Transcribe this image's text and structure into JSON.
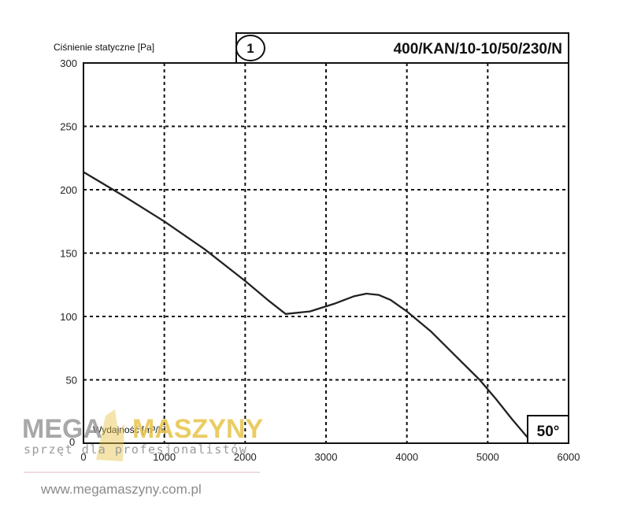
{
  "chart_data": {
    "type": "line",
    "ylabel": "Ciśnienie statyczne [Pa]",
    "xlabel": "Wydajność [m³/h]",
    "xlim": [
      0,
      6000
    ],
    "ylim": [
      0,
      300
    ],
    "x_ticks": [
      0,
      1000,
      2000,
      3000,
      4000,
      5000,
      6000
    ],
    "x_tick_labels": [
      "0",
      "1000",
      "2000",
      "3000",
      "4000",
      "5000",
      "6000"
    ],
    "y_ticks": [
      50,
      100,
      150,
      200,
      250,
      300
    ],
    "y_tick_labels": [
      "50",
      "100",
      "150",
      "200",
      "250",
      "300"
    ],
    "y_zero_label": "0",
    "grid": "dashed",
    "series": [
      {
        "name": "1",
        "x": [
          0,
          500,
          1000,
          1500,
          2000,
          2300,
          2500,
          2800,
          3100,
          3350,
          3500,
          3650,
          3800,
          4000,
          4300,
          4600,
          4900,
          5100,
          5300,
          5500,
          5560
        ],
        "y": [
          214,
          195,
          175,
          153,
          128,
          112,
          102,
          104,
          110,
          116,
          118,
          117,
          113,
          104,
          88,
          69,
          50,
          35,
          19,
          4,
          0
        ]
      }
    ],
    "badge": "1",
    "model": "400/KAN/10-10/50/230/N",
    "annotation": "50°"
  },
  "watermark": {
    "brand_left": "MEGA",
    "brand_right": "MASZYNY",
    "tagline": "sprzęt dla profesjonalistów",
    "url": "www.megamaszyny.com.pl",
    "brand_color": "#9a9a9a",
    "accent_color": "#e8c44a"
  }
}
